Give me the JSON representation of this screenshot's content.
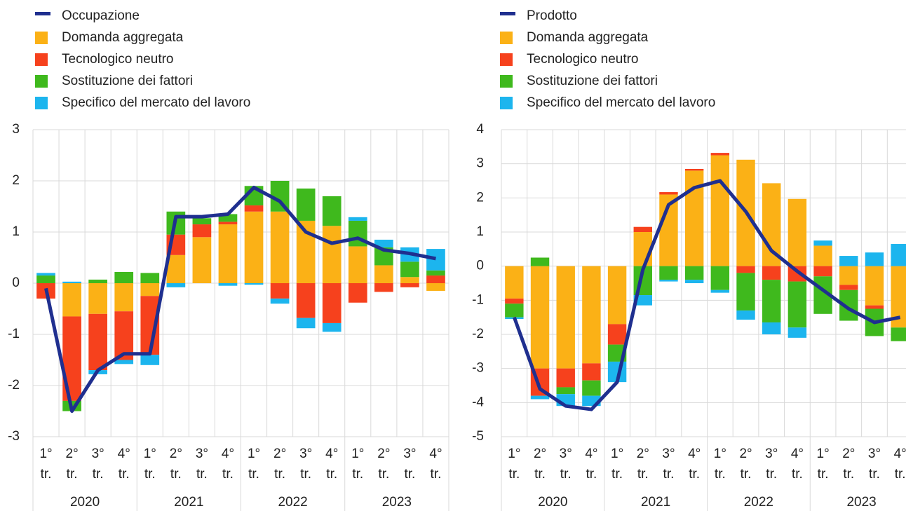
{
  "chart_data": [
    {
      "type": "bar",
      "stacked": true,
      "grid": true,
      "categories": [
        [
          "1°",
          "tr."
        ],
        [
          "2°",
          "tr."
        ],
        [
          "3°",
          "tr."
        ],
        [
          "4°",
          "tr."
        ],
        [
          "1°",
          "tr."
        ],
        [
          "2°",
          "tr."
        ],
        [
          "3°",
          "tr."
        ],
        [
          "4°",
          "tr."
        ],
        [
          "1°",
          "tr."
        ],
        [
          "2°",
          "tr."
        ],
        [
          "3°",
          "tr."
        ],
        [
          "4°",
          "tr."
        ],
        [
          "1°",
          "tr."
        ],
        [
          "2°",
          "tr."
        ],
        [
          "3°",
          "tr."
        ],
        [
          "4°",
          "tr."
        ]
      ],
      "years": [
        "2020",
        "2021",
        "2022",
        "2023"
      ],
      "ylim": [
        -3,
        3
      ],
      "yticks": [
        -3,
        -2,
        -1,
        0,
        1,
        2,
        3
      ],
      "series": [
        {
          "name": "Occupazione",
          "type": "line",
          "color": "#1f2f8f",
          "values": [
            -0.1,
            -2.5,
            -1.7,
            -1.38,
            -1.38,
            1.3,
            1.3,
            1.35,
            1.87,
            1.6,
            1.0,
            0.78,
            0.88,
            0.65,
            0.58,
            0.48
          ]
        },
        {
          "name": "Domanda aggregata",
          "color": "#fbb116",
          "values": [
            0,
            -0.65,
            -0.6,
            -0.55,
            -0.25,
            0.55,
            0.9,
            1.15,
            1.4,
            1.4,
            1.22,
            1.12,
            0.72,
            0.35,
            0.12,
            -0.15
          ]
        },
        {
          "name": "Tecnologico neutro",
          "color": "#f6411d",
          "values": [
            -0.3,
            -1.65,
            -1.1,
            -0.95,
            -1.15,
            0.4,
            0.25,
            0.05,
            0.12,
            -0.3,
            -0.68,
            -0.78,
            -0.38,
            -0.17,
            -0.08,
            0.15
          ]
        },
        {
          "name": "Sostituzione dei fattori",
          "color": "#3fb91d",
          "values": [
            0.15,
            -0.2,
            0.07,
            0.22,
            0.2,
            0.45,
            0.12,
            0.15,
            0.38,
            0.6,
            0.63,
            0.58,
            0.5,
            0.35,
            0.3,
            0.1
          ]
        },
        {
          "name": "Specifico del mercato del lavoro",
          "color": "#1cb5ee",
          "values": [
            0.05,
            0.03,
            -0.08,
            -0.08,
            -0.2,
            -0.08,
            0,
            -0.05,
            -0.03,
            -0.1,
            -0.2,
            -0.17,
            0.07,
            0.15,
            0.28,
            0.42
          ]
        }
      ]
    },
    {
      "type": "bar",
      "stacked": true,
      "grid": true,
      "categories": [
        [
          "1°",
          "tr."
        ],
        [
          "2°",
          "tr."
        ],
        [
          "3°",
          "tr."
        ],
        [
          "4°",
          "tr."
        ],
        [
          "1°",
          "tr."
        ],
        [
          "2°",
          "tr."
        ],
        [
          "3°",
          "tr."
        ],
        [
          "4°",
          "tr."
        ],
        [
          "1°",
          "tr."
        ],
        [
          "2°",
          "tr."
        ],
        [
          "3°",
          "tr."
        ],
        [
          "4°",
          "tr."
        ],
        [
          "1°",
          "tr."
        ],
        [
          "2°",
          "tr."
        ],
        [
          "3°",
          "tr."
        ],
        [
          "4°",
          "tr."
        ]
      ],
      "years": [
        "2020",
        "2021",
        "2022",
        "2023"
      ],
      "ylim": [
        -5,
        4
      ],
      "yticks": [
        -5,
        -4,
        -3,
        -2,
        -1,
        0,
        1,
        2,
        3,
        4
      ],
      "series": [
        {
          "name": "Prodotto",
          "type": "line",
          "color": "#1f2f8f",
          "values": [
            -1.5,
            -3.6,
            -4.1,
            -4.2,
            -3.4,
            -0.1,
            1.8,
            2.3,
            2.5,
            1.6,
            0.45,
            -0.15,
            -0.7,
            -1.25,
            -1.65,
            -1.5
          ]
        },
        {
          "name": "Domanda aggregata",
          "color": "#fbb116",
          "values": [
            -0.95,
            -3.0,
            -3.0,
            -2.85,
            -1.7,
            1.0,
            2.1,
            2.8,
            3.25,
            3.12,
            2.43,
            1.97,
            0.6,
            -0.55,
            -1.15,
            -1.8
          ]
        },
        {
          "name": "Tecnologico neutro",
          "color": "#f6411d",
          "values": [
            -0.15,
            -0.8,
            -0.55,
            -0.5,
            -0.6,
            0.15,
            0.07,
            0.05,
            0.07,
            -0.2,
            -0.4,
            -0.45,
            -0.3,
            -0.15,
            -0.1,
            0
          ]
        },
        {
          "name": "Sostituzione dei fattori",
          "color": "#3fb91d",
          "values": [
            -0.4,
            0.25,
            -0.2,
            -0.45,
            -0.5,
            -0.85,
            -0.4,
            -0.4,
            -0.7,
            -1.1,
            -1.25,
            -1.35,
            -1.1,
            -0.9,
            -0.8,
            -0.4
          ]
        },
        {
          "name": "Specifico del mercato del lavoro",
          "color": "#1cb5ee",
          "values": [
            -0.05,
            -0.1,
            -0.35,
            -0.3,
            -0.6,
            -0.3,
            -0.05,
            -0.1,
            -0.08,
            -0.27,
            -0.35,
            -0.3,
            0.15,
            0.3,
            0.4,
            0.65
          ]
        }
      ]
    }
  ]
}
